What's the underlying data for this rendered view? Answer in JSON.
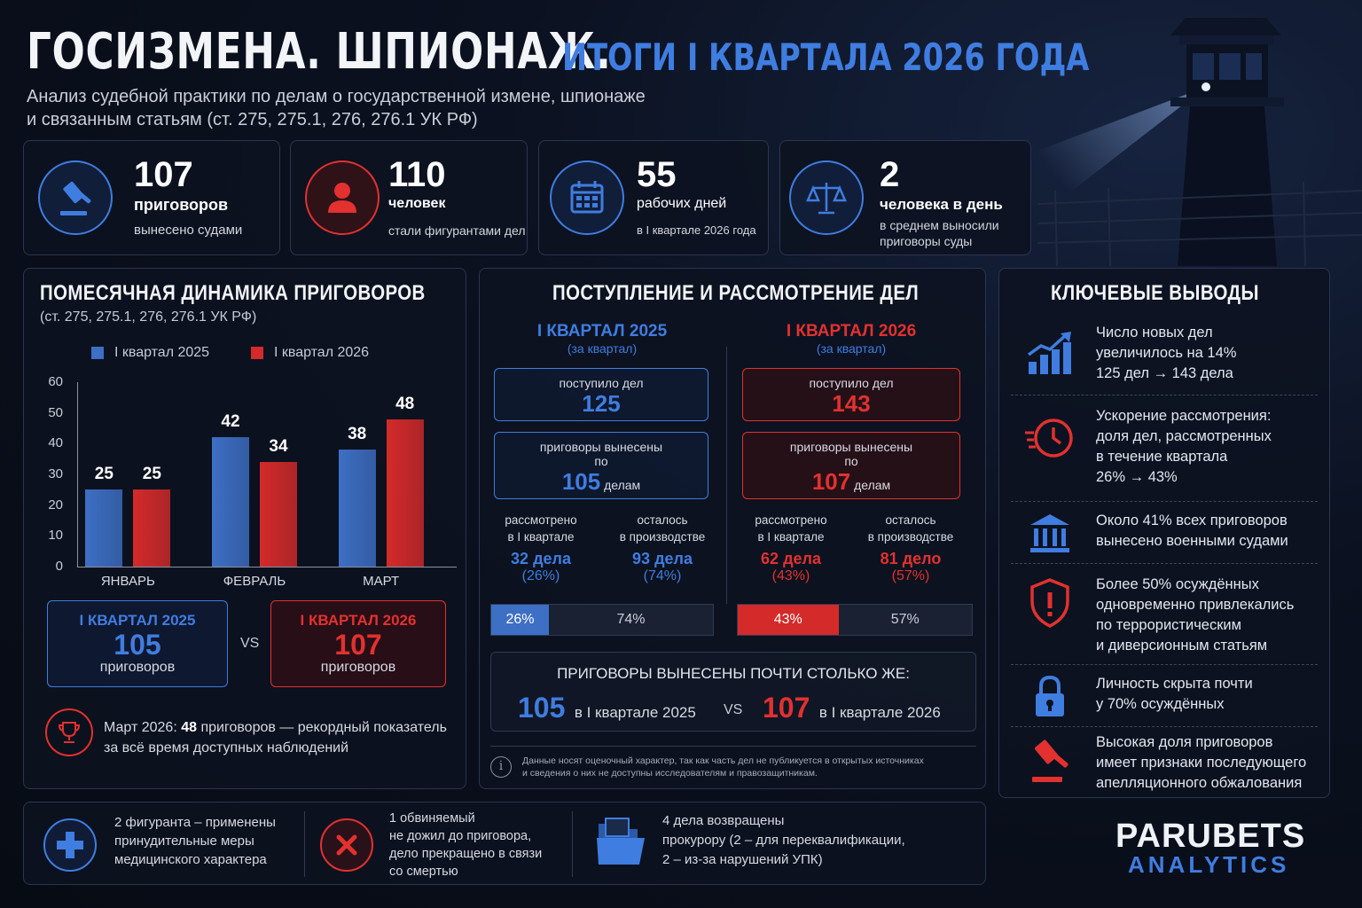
{
  "header": {
    "title": "ГОСИЗМЕНА. ШПИОНАЖ.",
    "title_accent": "ИТОГИ I КВАРТАЛА 2026 ГОДА",
    "subtitle_line1": "Анализ судебной практики по делам о государственной измене, шпионаже",
    "subtitle_line2": "и связанным статьям (ст. 275, 275.1, 276, 276.1 УК РФ)"
  },
  "stats": [
    {
      "icon": "gavel-icon",
      "value": "107",
      "unit": "приговоров",
      "desc": "вынесено судами"
    },
    {
      "icon": "person-icon",
      "value": "110",
      "unit": "человек",
      "desc": "стали фигурантами дел"
    },
    {
      "icon": "calendar-icon",
      "value": "55",
      "unit": "рабочих дней",
      "desc": "в I квартале 2026 года"
    },
    {
      "icon": "scales-icon",
      "value": "2",
      "unit": "человека в день",
      "desc": "в среднем выносили",
      "desc2": "приговоры суды"
    }
  ],
  "chart_data": {
    "type": "bar",
    "title": "ПОМЕСЯЧНАЯ ДИНАМИКА ПРИГОВОРОВ",
    "subtitle": "(ст. 275, 275.1, 276, 276.1 УК РФ)",
    "categories": [
      "ЯНВАРЬ",
      "ФЕВРАЛЬ",
      "МАРТ"
    ],
    "series": [
      {
        "name": "I квартал 2025",
        "color": "#3d6fc4",
        "values": [
          25,
          42,
          38
        ]
      },
      {
        "name": "I квартал 2026",
        "color": "#d42a2a",
        "values": [
          25,
          34,
          48
        ]
      }
    ],
    "yticks": [
      "0",
      "10",
      "20",
      "30",
      "40",
      "50",
      "60"
    ],
    "ylim": [
      0,
      60
    ],
    "legend": "top",
    "grid": false
  },
  "chart_summary": {
    "q2025_label": "I КВАРТАЛ 2025",
    "q2025_value": "105",
    "q2025_unit": "приговоров",
    "vs": "VS",
    "q2026_label": "I КВАРТАЛ 2026",
    "q2026_value": "107",
    "q2026_unit": "приговоров",
    "record_prefix": "Март 2026:",
    "record_value": "48",
    "record_text": "приговоров — рекордный показатель",
    "record_text2": "за всё время доступных наблюдений"
  },
  "flow": {
    "title": "ПОСТУПЛЕНИЕ И РАССМОТРЕНИЕ ДЕЛ",
    "left": {
      "period": "I КВАРТАЛ 2025",
      "period_sub": "(за квартал)",
      "received_label": "поступило дел",
      "received": "125",
      "verdicts_label": "приговоры вынесены",
      "verdicts_po": "по",
      "verdicts": "105",
      "verdicts_unit": "делам",
      "reviewed_label1": "рассмотрено",
      "reviewed_label2": "в I квартале",
      "reviewed": "32 дела",
      "reviewed_pct": "(26%)",
      "pending_label1": "осталось",
      "pending_label2": "в производстве",
      "pending": "93 дела",
      "pending_pct": "(74%)",
      "bar_done": 26,
      "bar_done_label": "26%",
      "bar_rest_label": "74%"
    },
    "right": {
      "period": "I КВАРТАЛ 2026",
      "period_sub": "(за квартал)",
      "received_label": "поступило дел",
      "received": "143",
      "verdicts_label": "приговоры вынесены",
      "verdicts_po": "по",
      "verdicts": "107",
      "verdicts_unit": "делам",
      "reviewed_label1": "рассмотрено",
      "reviewed_label2": "в I квартале",
      "reviewed": "62 дела",
      "reviewed_pct": "(43%)",
      "pending_label1": "осталось",
      "pending_label2": "в производстве",
      "pending": "81 дело",
      "pending_pct": "(57%)",
      "bar_done": 43,
      "bar_done_label": "43%",
      "bar_rest_label": "57%"
    },
    "compare_title": "ПРИГОВОРЫ ВЫНЕСЕНЫ ПОЧТИ СТОЛЬКО ЖЕ:",
    "compare_left_value": "105",
    "compare_left_text": "в I квартале 2025",
    "compare_vs": "VS",
    "compare_right_value": "107",
    "compare_right_text": "в I квартале 2026",
    "note_line1": "Данные носят оценочный характер, так как часть дел не публикуется в открытых источниках",
    "note_line2": "и сведения о них не доступны исследователям и правозащитникам."
  },
  "findings": {
    "title": "КЛЮЧЕВЫЕ ВЫВОДЫ",
    "items": [
      {
        "icon": "growth-chart-icon",
        "lines": [
          "Число новых дел",
          "увеличилось на 14%",
          "125 дел → 143 дела"
        ]
      },
      {
        "icon": "fast-clock-icon",
        "lines": [
          "Ускорение рассмотрения:",
          "доля дел, рассмотренных",
          "в течение квартала",
          "26% → 43%"
        ]
      },
      {
        "icon": "courthouse-icon",
        "lines": [
          "Около 41% всех приговоров",
          "вынесено военными судами"
        ]
      },
      {
        "icon": "shield-alert-icon",
        "lines": [
          "Более 50% осуждённых",
          "одновременно привлекались",
          "по террористическим",
          "и диверсионным статьям"
        ]
      },
      {
        "icon": "lock-icon",
        "lines": [
          "Личность скрыта почти",
          "у 70% осуждённых"
        ]
      },
      {
        "icon": "gavel-icon",
        "lines": [
          "Высокая доля приговоров",
          "имеет признаки последующего",
          "апелляционного обжалования"
        ]
      }
    ]
  },
  "bottom": [
    {
      "icon": "medical-cross-icon",
      "lines": [
        "2 фигуранта – применены",
        "принудительные меры",
        "медицинского характера"
      ]
    },
    {
      "icon": "cross-mark-icon",
      "lines": [
        "1 обвиняемый",
        "не дожил до приговора,",
        "дело прекращено в связи",
        "со смертью"
      ]
    },
    {
      "icon": "folder-icon",
      "lines": [
        "4 дела возвращены",
        "прокурору (2 – для переквалификации,",
        "2 – из-за нарушений УПК)"
      ]
    }
  ],
  "brand": {
    "name": "PARUBETS",
    "sub": "ANALYTICS"
  }
}
